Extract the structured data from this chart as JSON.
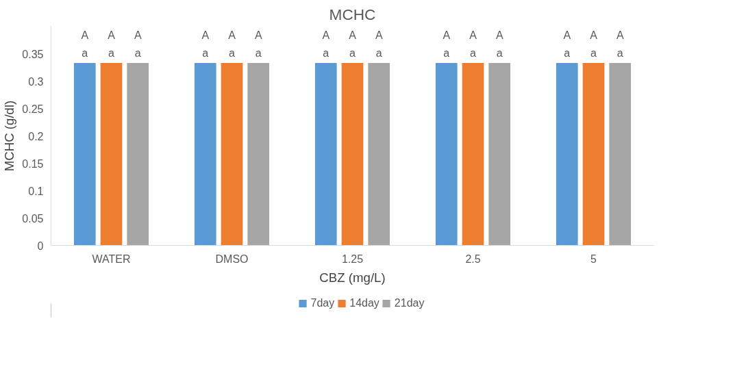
{
  "chart_data": {
    "type": "bar",
    "title": "MCHC",
    "xlabel": "CBZ (mg/L)",
    "ylabel": "MCHC (g/dl)",
    "categories": [
      "WATER",
      "DMSO",
      "1.25",
      "2.5",
      "5"
    ],
    "series": [
      {
        "name": "7day",
        "color": "#5b9bd5",
        "values": [
          0.333,
          0.333,
          0.333,
          0.333,
          0.333
        ],
        "value_labels": [
          "A\na",
          "A\na",
          "A\na",
          "A\na",
          "A\na"
        ]
      },
      {
        "name": "14day",
        "color": "#ed7d31",
        "values": [
          0.333,
          0.333,
          0.333,
          0.333,
          0.333
        ],
        "value_labels": [
          "A\na",
          "A\na",
          "A\na",
          "A\na",
          "A\na"
        ]
      },
      {
        "name": "21day",
        "color": "#a5a5a5",
        "values": [
          0.333,
          0.333,
          0.333,
          0.333,
          0.333
        ],
        "value_labels": [
          "A\na",
          "A\na",
          "A\na",
          "A\na",
          "A\na"
        ]
      }
    ],
    "ylim": [
      0,
      0.4
    ],
    "yticks": [
      0,
      0.05,
      0.1,
      0.15,
      0.2,
      0.25,
      0.3,
      0.35
    ],
    "grid": false,
    "legend": "bottom"
  }
}
